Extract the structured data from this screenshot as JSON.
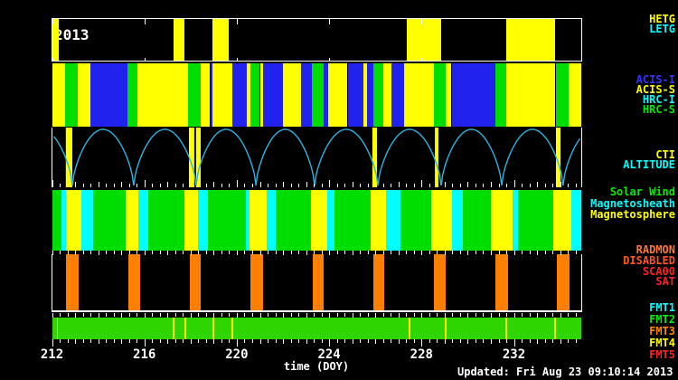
{
  "title_year": "2013",
  "updated_text": "Updated: Fri Aug 23 09:10:14 2013",
  "x_axis": {
    "label": "time (DOY)",
    "tick_values": [
      212,
      216,
      220,
      224,
      228,
      232
    ],
    "doy_start": 212,
    "doy_end": 234.9
  },
  "colors": {
    "background": "#000000",
    "frame": "#ffffff",
    "text": "#ffffff",
    "altitude_curve": "#2fb3e0",
    "radmon_bar": "#ff8000",
    "fmt_base": "#2ed500",
    "state_colors": {
      "HETG": "#ffff00",
      "LETG": "#00ffff",
      "ACIS-I": "#2222ee",
      "ACIS-S": "#ffff00",
      "HRC-I": "#00ffff",
      "HRC-S": "#00dd00",
      "SW": "#00dd00",
      "MSH": "#00ffff",
      "MSP": "#ffff00",
      "CTI": "#ffff00",
      "FMT4": "#ffff00"
    }
  },
  "legend": {
    "gratings": [
      {
        "text": "HETG",
        "color": "#ffff00"
      },
      {
        "text": "LETG",
        "color": "#00ffff"
      }
    ],
    "instruments": [
      {
        "text": "ACIS-I",
        "color": "#3333ff"
      },
      {
        "text": "ACIS-S",
        "color": "#ffff00"
      },
      {
        "text": "HRC-I",
        "color": "#00ffff"
      },
      {
        "text": "HRC-S",
        "color": "#00ee00"
      }
    ],
    "altitude": [
      {
        "text": "CTI",
        "color": "#ffff00"
      },
      {
        "text": "ALTITUDE",
        "color": "#00ffff"
      }
    ],
    "regions": [
      {
        "text": "Solar Wind",
        "color": "#00ee00"
      },
      {
        "text": "Magnetosheath",
        "color": "#00ffff"
      },
      {
        "text": "Magnetosphere",
        "color": "#ffff00"
      }
    ],
    "radmon": [
      {
        "text": "RADMON",
        "color": "#ff7733"
      },
      {
        "text": "DISABLED",
        "color": "#ff5522"
      },
      {
        "text": "SCA00",
        "color": "#ff2222"
      },
      {
        "text": "SAT",
        "color": "#ff2222"
      }
    ],
    "fmt": [
      {
        "text": "FMT1",
        "color": "#00ffff"
      },
      {
        "text": "FMT2",
        "color": "#00ee00"
      },
      {
        "text": "FMT3",
        "color": "#ff8800"
      },
      {
        "text": "FMT4",
        "color": "#ffff00"
      },
      {
        "text": "FMT5",
        "color": "#ff2222"
      }
    ]
  },
  "chart_data": {
    "type": "timeline",
    "x_unit": "day of year 2013",
    "x_range": [
      212,
      234.9
    ],
    "bands": {
      "gratings": {
        "segments": [
          [
            212.0,
            212.3,
            "HETG"
          ],
          [
            217.25,
            217.75,
            "HETG"
          ],
          [
            218.95,
            219.65,
            "HETG"
          ],
          [
            227.35,
            228.85,
            "HETG"
          ],
          [
            231.65,
            233.8,
            "HETG"
          ]
        ]
      },
      "instruments": {
        "segments": [
          [
            212.0,
            212.55,
            "ACIS-S"
          ],
          [
            212.55,
            213.1,
            "HRC-S"
          ],
          [
            213.1,
            213.65,
            "ACIS-S"
          ],
          [
            213.65,
            215.25,
            "ACIS-I"
          ],
          [
            215.25,
            215.7,
            "HRC-S"
          ],
          [
            215.7,
            217.9,
            "ACIS-S"
          ],
          [
            217.9,
            218.45,
            "HRC-S"
          ],
          [
            218.45,
            218.85,
            "ACIS-S"
          ],
          [
            218.85,
            218.95,
            "ACIS-I"
          ],
          [
            218.95,
            219.8,
            "ACIS-S"
          ],
          [
            219.8,
            220.45,
            "ACIS-I"
          ],
          [
            220.45,
            220.6,
            "ACIS-S"
          ],
          [
            220.6,
            221.0,
            "HRC-S"
          ],
          [
            221.0,
            221.15,
            "ACIS-S"
          ],
          [
            221.15,
            222.0,
            "ACIS-I"
          ],
          [
            222.0,
            222.8,
            "ACIS-S"
          ],
          [
            222.8,
            223.25,
            "ACIS-I"
          ],
          [
            223.25,
            223.75,
            "HRC-S"
          ],
          [
            223.75,
            223.95,
            "ACIS-I"
          ],
          [
            223.95,
            224.8,
            "ACIS-S"
          ],
          [
            224.8,
            225.5,
            "ACIS-I"
          ],
          [
            225.5,
            225.65,
            "ACIS-S"
          ],
          [
            225.65,
            225.9,
            "ACIS-I"
          ],
          [
            225.9,
            226.35,
            "HRC-S"
          ],
          [
            226.35,
            226.7,
            "ACIS-S"
          ],
          [
            226.7,
            227.25,
            "ACIS-I"
          ],
          [
            227.25,
            228.55,
            "ACIS-S"
          ],
          [
            228.55,
            229.05,
            "HRC-S"
          ],
          [
            229.05,
            229.3,
            "ACIS-S"
          ],
          [
            229.3,
            231.2,
            "ACIS-I"
          ],
          [
            231.2,
            231.65,
            "HRC-S"
          ],
          [
            231.65,
            233.8,
            "ACIS-S"
          ],
          [
            233.8,
            234.35,
            "HRC-S"
          ],
          [
            234.35,
            234.9,
            "ACIS-S"
          ]
        ]
      },
      "altitude": {
        "perigees_doy": [
          212.88,
          215.54,
          218.24,
          220.83,
          223.37,
          226.11,
          228.85,
          231.47,
          234.13
        ],
        "orbit_period_days": 2.66,
        "cti_bars": [
          [
            212.6,
            212.88
          ],
          [
            217.93,
            218.16
          ],
          [
            218.24,
            218.44
          ],
          [
            225.87,
            226.07
          ],
          [
            228.58,
            228.73
          ],
          [
            233.82,
            234.02
          ]
        ]
      },
      "regions": {
        "segments": [
          [
            212.0,
            212.4,
            "SW"
          ],
          [
            212.4,
            212.6,
            "MSH"
          ],
          [
            212.6,
            213.27,
            "MSP"
          ],
          [
            213.27,
            213.78,
            "MSH"
          ],
          [
            213.78,
            215.19,
            "SW"
          ],
          [
            215.19,
            215.74,
            "MSP"
          ],
          [
            215.74,
            216.17,
            "MSH"
          ],
          [
            216.17,
            217.73,
            "SW"
          ],
          [
            217.73,
            218.32,
            "MSP"
          ],
          [
            218.32,
            218.75,
            "MSH"
          ],
          [
            218.75,
            220.4,
            "SW"
          ],
          [
            220.4,
            220.55,
            "MSH"
          ],
          [
            220.55,
            221.3,
            "MSP"
          ],
          [
            221.3,
            221.69,
            "MSH"
          ],
          [
            221.69,
            223.21,
            "SW"
          ],
          [
            223.21,
            223.92,
            "MSP"
          ],
          [
            223.92,
            224.23,
            "MSH"
          ],
          [
            224.23,
            225.8,
            "SW"
          ],
          [
            225.8,
            226.46,
            "MSP"
          ],
          [
            226.46,
            227.09,
            "MSH"
          ],
          [
            227.09,
            228.42,
            "SW"
          ],
          [
            228.42,
            229.32,
            "MSP"
          ],
          [
            229.32,
            229.79,
            "MSH"
          ],
          [
            229.79,
            231.0,
            "SW"
          ],
          [
            231.0,
            231.94,
            "MSP"
          ],
          [
            231.94,
            232.17,
            "MSH"
          ],
          [
            232.17,
            233.7,
            "SW"
          ],
          [
            233.7,
            234.48,
            "MSP"
          ],
          [
            234.48,
            234.9,
            "MSH"
          ]
        ]
      },
      "radmon": {
        "disabled_bars": [
          [
            212.6,
            213.15
          ],
          [
            215.3,
            215.8
          ],
          [
            217.95,
            218.45
          ],
          [
            220.6,
            221.15
          ],
          [
            223.3,
            223.75
          ],
          [
            225.9,
            226.4
          ],
          [
            228.55,
            229.05
          ],
          [
            231.2,
            231.75
          ],
          [
            233.85,
            234.4
          ]
        ]
      },
      "fmt": {
        "base_format": "FMT2",
        "fmt4_marks_doy": [
          212.2,
          217.22,
          217.73,
          218.95,
          219.77,
          227.44,
          229.0,
          231.63,
          233.74
        ]
      }
    }
  }
}
